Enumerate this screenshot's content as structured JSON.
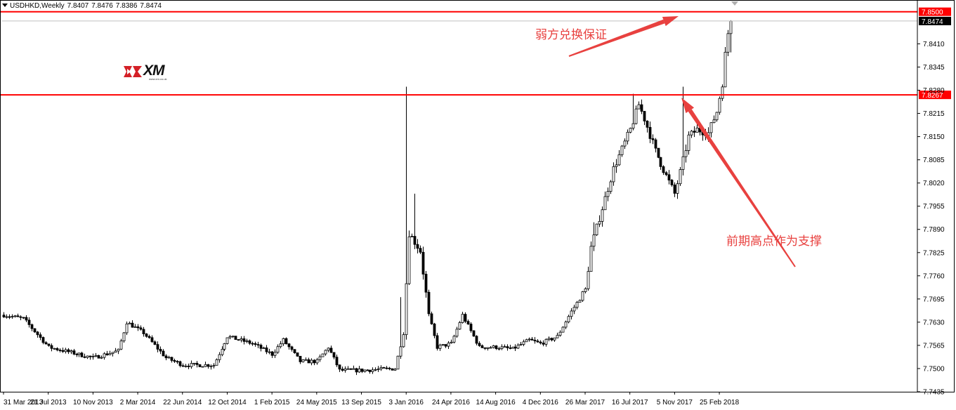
{
  "header": {
    "symbol": "USDHKD,Weekly",
    "open": "7.8407",
    "high": "7.8476",
    "low": "7.8386",
    "close": "7.8474"
  },
  "logo": {
    "text": "XM",
    "site": "www.xm.co.uk",
    "mark_color": "#d42027"
  },
  "annotations": {
    "top_note": "弱方兑换保证",
    "support_note": "前期高点作为支撑"
  },
  "colors": {
    "level_line": "#ff0000",
    "annotation": "#e8413f",
    "candle": "#000000",
    "price_tag_bg": "#ff0000",
    "current_tag_bg": "#000000"
  },
  "chart_data": {
    "type": "candlestick",
    "symbol": "USDHKD",
    "timeframe": "Weekly",
    "x_start": "31 Mar 2013",
    "x_end": "25 Mar 2018",
    "x_tick_labels": [
      "31 Mar 2013",
      "21 Jul 2013",
      "10 Nov 2013",
      "2 Mar 2014",
      "22 Jun 2014",
      "12 Oct 2014",
      "1 Feb 2015",
      "24 May 2015",
      "13 Sep 2015",
      "3 Jan 2016",
      "24 Apr 2016",
      "14 Aug 2016",
      "4 Dec 2016",
      "26 Mar 2017",
      "16 Jul 2017",
      "5 Nov 2017",
      "25 Feb 2018"
    ],
    "y_tick_labels": [
      "7.8410",
      "7.8345",
      "7.8280",
      "7.8215",
      "7.8150",
      "7.8085",
      "7.8020",
      "7.7955",
      "7.7890",
      "7.7825",
      "7.7760",
      "7.7695",
      "7.7630",
      "7.7565",
      "7.7500",
      "7.7435"
    ],
    "ylim": [
      7.7435,
      7.8525
    ],
    "levels": [
      {
        "price": 7.85,
        "label": "7.8500",
        "style": "resistance"
      },
      {
        "price": 7.8267,
        "label": "7.8267",
        "style": "support"
      }
    ],
    "current_price": {
      "price": 7.8474,
      "label": "7.8474"
    },
    "anchors": [
      {
        "date": "31 Mar 2013",
        "price": 7.765
      },
      {
        "date": "19 May 2013",
        "price": 7.764
      },
      {
        "date": "21 Jul 2013",
        "price": 7.756
      },
      {
        "date": "10 Nov 2013",
        "price": 7.753
      },
      {
        "date": "12 Jan 2014",
        "price": 7.755
      },
      {
        "date": "2 Feb 2014",
        "price": 7.763
      },
      {
        "date": "16 Mar 2014",
        "price": 7.76
      },
      {
        "date": "11 May 2014",
        "price": 7.753
      },
      {
        "date": "22 Jun 2014",
        "price": 7.751
      },
      {
        "date": "7 Sep 2014",
        "price": 7.751
      },
      {
        "date": "12 Oct 2014",
        "price": 7.759
      },
      {
        "date": "14 Dec 2014",
        "price": 7.757
      },
      {
        "date": "1 Feb 2015",
        "price": 7.754
      },
      {
        "date": "1 Mar 2015",
        "price": 7.758
      },
      {
        "date": "12 Apr 2015",
        "price": 7.752
      },
      {
        "date": "24 May 2015",
        "price": 7.752
      },
      {
        "date": "21 Jun 2015",
        "price": 7.756
      },
      {
        "date": "19 Jul 2015",
        "price": 7.7495
      },
      {
        "date": "13 Sep 2015",
        "price": 7.7495
      },
      {
        "date": "6 Dec 2015",
        "price": 7.75
      },
      {
        "date": "27 Dec 2015",
        "price": 7.76
      },
      {
        "date": "10 Jan 2016",
        "price": 7.788
      },
      {
        "date": "7 Feb 2016",
        "price": 7.783
      },
      {
        "date": "28 Feb 2016",
        "price": 7.765
      },
      {
        "date": "20 Mar 2016",
        "price": 7.756
      },
      {
        "date": "24 Apr 2016",
        "price": 7.757
      },
      {
        "date": "22 May 2016",
        "price": 7.765
      },
      {
        "date": "3 Jul 2016",
        "price": 7.756
      },
      {
        "date": "14 Aug 2016",
        "price": 7.756
      },
      {
        "date": "25 Sep 2016",
        "price": 7.7555
      },
      {
        "date": "6 Nov 2016",
        "price": 7.758
      },
      {
        "date": "4 Dec 2016",
        "price": 7.757
      },
      {
        "date": "15 Jan 2017",
        "price": 7.759
      },
      {
        "date": "19 Feb 2017",
        "price": 7.766
      },
      {
        "date": "26 Mar 2017",
        "price": 7.772
      },
      {
        "date": "9 Apr 2017",
        "price": 7.784
      },
      {
        "date": "7 May 2017",
        "price": 7.795
      },
      {
        "date": "4 Jun 2017",
        "price": 7.806
      },
      {
        "date": "16 Jul 2017",
        "price": 7.817
      },
      {
        "date": "6 Aug 2017",
        "price": 7.824
      },
      {
        "date": "20 Aug 2017",
        "price": 7.82
      },
      {
        "date": "17 Sep 2017",
        "price": 7.811
      },
      {
        "date": "15 Oct 2017",
        "price": 7.804
      },
      {
        "date": "5 Nov 2017",
        "price": 7.799
      },
      {
        "date": "19 Nov 2017",
        "price": 7.805
      },
      {
        "date": "10 Dec 2017",
        "price": 7.815
      },
      {
        "date": "31 Dec 2017",
        "price": 7.817
      },
      {
        "date": "28 Jan 2018",
        "price": 7.816
      },
      {
        "date": "18 Feb 2018",
        "price": 7.822
      },
      {
        "date": "4 Mar 2018",
        "price": 7.83
      },
      {
        "date": "11 Mar 2018",
        "price": 7.838
      },
      {
        "date": "18 Mar 2018",
        "price": 7.844
      },
      {
        "date": "25 Mar 2018",
        "price": 7.8474
      }
    ],
    "spikes": [
      {
        "date": "20 Dec 2015",
        "high": 7.77
      },
      {
        "date": "3 Jan 2016",
        "high": 7.829
      },
      {
        "date": "24 Jan 2016",
        "high": 7.799
      },
      {
        "date": "16 Apr 2017",
        "high": 7.791
      },
      {
        "date": "23 Jul 2017",
        "high": 7.827
      },
      {
        "date": "26 Nov 2017",
        "high": 7.829
      }
    ]
  }
}
